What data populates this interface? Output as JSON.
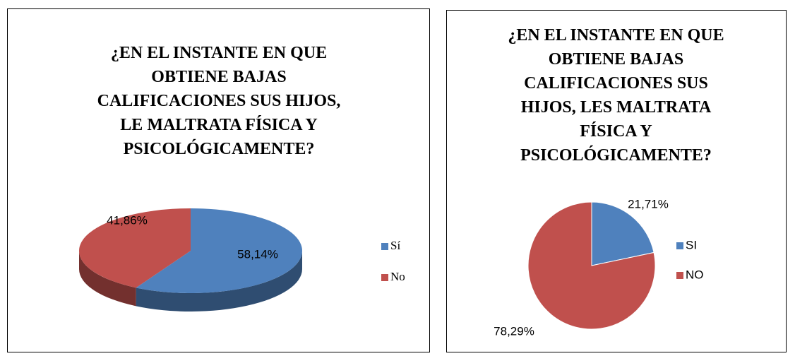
{
  "chart_data": [
    {
      "type": "pie",
      "three_d": true,
      "title": "¿EN EL INSTANTE EN QUE\nOBTIENE BAJAS\nCALIFICACIONES SUS HIJOS,\nLE MALTRATA FÍSICA Y\nPSICOLÓGICAMENTE?",
      "categories": [
        "Sí",
        "No"
      ],
      "values": [
        58.14,
        41.86
      ],
      "value_labels": [
        "58,14%",
        "41,86%"
      ],
      "colors": [
        "#4f81bd",
        "#c0504d"
      ]
    },
    {
      "type": "pie",
      "three_d": false,
      "title": "¿EN EL INSTANTE EN QUE\nOBTIENE BAJAS\nCALIFICACIONES SUS\nHIJOS, LES MALTRATA\nFÍSICA Y\nPSICOLÓGICAMENTE?",
      "categories": [
        "SI",
        "NO"
      ],
      "values": [
        21.71,
        78.29
      ],
      "value_labels": [
        "21,71%",
        "78,29%"
      ],
      "colors": [
        "#4f81bd",
        "#c0504d"
      ]
    }
  ]
}
